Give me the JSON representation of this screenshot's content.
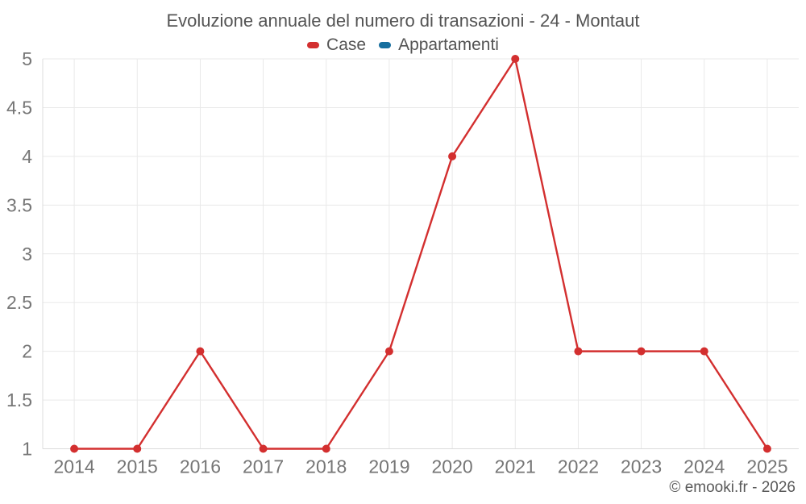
{
  "chart_data": {
    "type": "line",
    "title": "Evoluzione annuale del numero di transazioni - 24 - Montaut",
    "categories": [
      "2014",
      "2015",
      "2016",
      "2017",
      "2018",
      "2019",
      "2020",
      "2021",
      "2022",
      "2023",
      "2024",
      "2025"
    ],
    "series": [
      {
        "name": "Case",
        "color": "#d32f2f",
        "values": [
          1,
          1,
          2,
          1,
          1,
          2,
          4,
          5,
          2,
          2,
          2,
          1
        ]
      },
      {
        "name": "Appartamenti",
        "color": "#166e9e",
        "values": []
      }
    ],
    "ylim": [
      1,
      5
    ],
    "yticks": [
      1,
      1.5,
      2,
      2.5,
      3,
      3.5,
      4,
      4.5,
      5
    ],
    "xlabel": "",
    "ylabel": "",
    "grid": true,
    "legend_position": "top",
    "grid_color": "#e9e9e9",
    "axis_color": "#dcdcdc",
    "tick_label_color": "#767676"
  },
  "footer": {
    "copyright": "© emooki.fr - 2026"
  }
}
